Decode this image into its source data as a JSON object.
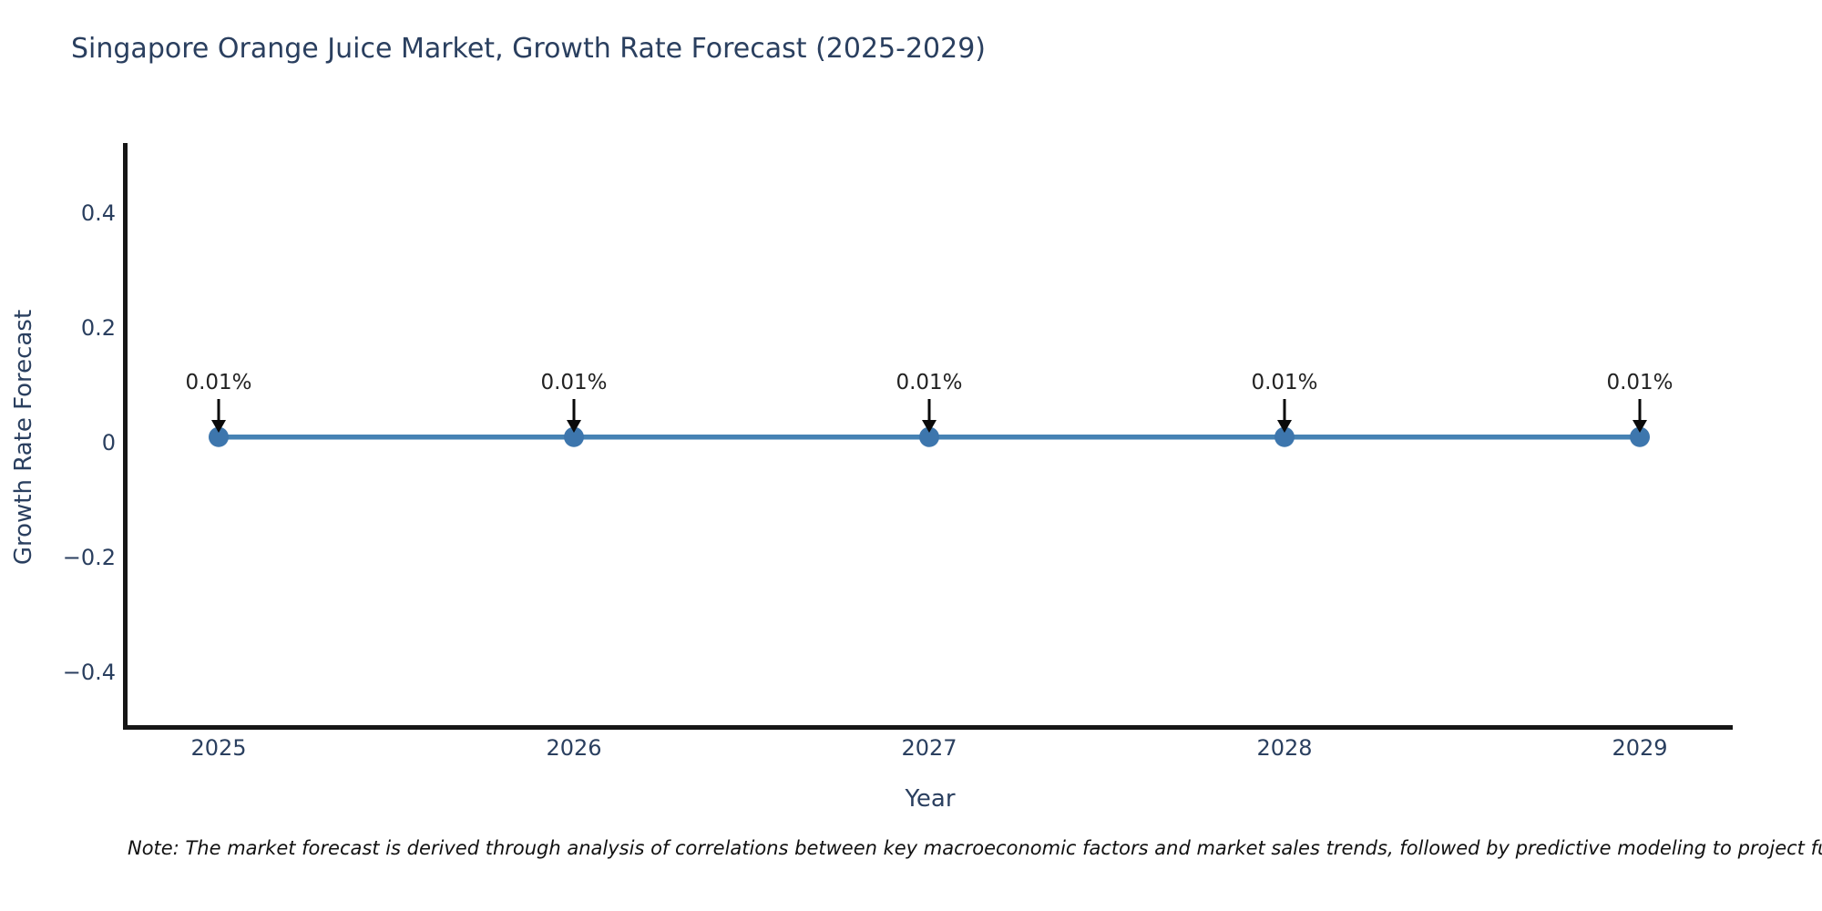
{
  "title": "Singapore Orange Juice Market, Growth Rate Forecast (2025-2029)",
  "note": "Note: The market forecast is derived through analysis of correlations between key macroeconomic factors and market sales trends, followed by predictive modeling to project future sales",
  "colors": {
    "line": "#4682b4",
    "marker": "#3d76ad",
    "axis": "#161616",
    "text": "#2a3f5f",
    "annotation_arrow": "#0a0a0a"
  },
  "chart_data": {
    "type": "line",
    "title": "Singapore Orange Juice Market, Growth Rate Forecast (2025-2029)",
    "xlabel": "Year",
    "ylabel": "Growth Rate Forecast",
    "categories": [
      "2025",
      "2026",
      "2027",
      "2028",
      "2029"
    ],
    "series": [
      {
        "name": "Growth Rate Forecast",
        "values": [
          0.01,
          0.01,
          0.01,
          0.01,
          0.01
        ]
      }
    ],
    "annotations": [
      "0.01%",
      "0.01%",
      "0.01%",
      "0.01%",
      "0.01%"
    ],
    "units": "%",
    "yticks": [
      0.4,
      0.2,
      0,
      -0.2,
      -0.4
    ],
    "ylim": [
      -0.5,
      0.52
    ],
    "grid": false,
    "legend": "none",
    "marker": "circle"
  }
}
